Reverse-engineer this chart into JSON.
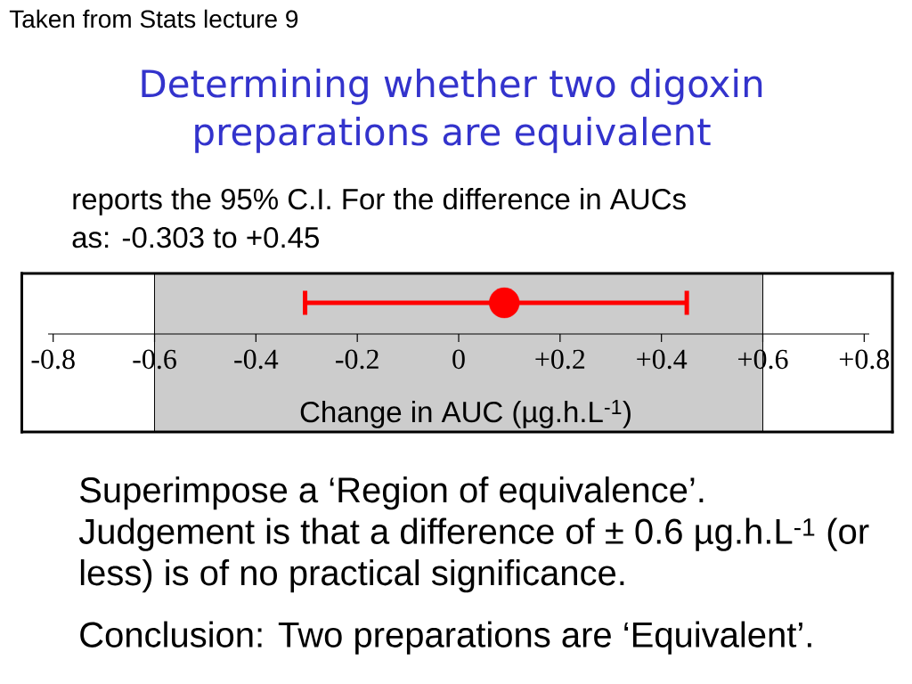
{
  "chart_data": {
    "type": "scatter",
    "title": "Determining whether two digoxin preparations are equivalent",
    "subtitle": "reports the 95% C.I. For the difference in AUCs as:  -0.303  to +0.45",
    "xlabel": "Change in AUC (µg.h.L$^{-1}$)",
    "orientation": "horizontal",
    "categories": [
      null
    ],
    "values": [
      0.09
    ],
    "errors": [
      [
        -0.303,
        0.45
      ]
    ],
    "color": "#ff0000",
    "xlim": [
      -0.81,
      0.81
    ],
    "xticks": [
      {
        "value": -0.8,
        "label": "-0.8"
      },
      {
        "value": -0.6,
        "label": "-0.6"
      },
      {
        "value": -0.4,
        "label": "-0.4"
      },
      {
        "value": -0.2,
        "label": "-0.2"
      },
      {
        "value": 0,
        "label": "0"
      },
      {
        "value": 0.2,
        "label": "+0.2"
      },
      {
        "value": 0.4,
        "label": "+0.4"
      },
      {
        "value": 0.6,
        "label": "+0.6"
      },
      {
        "value": 0.8,
        "label": "+0.8"
      }
    ],
    "bands": [
      {
        "axis": "x",
        "from": -0.6,
        "to": 0.6,
        "color": "#cccccc"
      }
    ],
    "annotations": [
      "Taken from Stats lecture 9",
      "Superimpose a ‘Region of equivalence’.",
      "Judgement is that a difference of ± 0.6 µg.h.L$^{-1}$ (or less) is of no practical significance.",
      "Conclusion:  Two preparations are ‘Equivalent’."
    ]
  }
}
